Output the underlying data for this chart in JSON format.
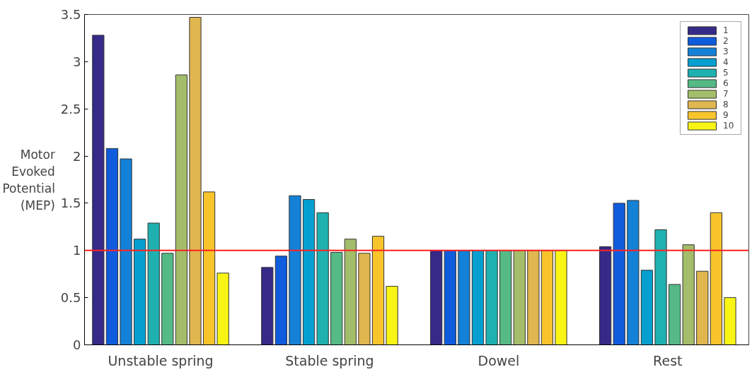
{
  "chart_data": {
    "type": "bar",
    "ylabel": "Motor Evoked Potential (MEP)",
    "categories": [
      "Unstable spring",
      "Stable spring",
      "Dowel",
      "Rest"
    ],
    "series": [
      {
        "name": "1",
        "color": "#352a87",
        "values": [
          3.28,
          0.82,
          1.0,
          1.04
        ]
      },
      {
        "name": "2",
        "color": "#0f5cdd",
        "values": [
          2.08,
          0.94,
          1.0,
          1.5
        ]
      },
      {
        "name": "3",
        "color": "#1481d6",
        "values": [
          1.97,
          1.58,
          1.0,
          1.53
        ]
      },
      {
        "name": "4",
        "color": "#069fd0",
        "values": [
          1.12,
          1.54,
          1.0,
          0.79
        ]
      },
      {
        "name": "5",
        "color": "#1eb1b0",
        "values": [
          1.29,
          1.4,
          1.0,
          1.22
        ]
      },
      {
        "name": "6",
        "color": "#55ba86",
        "values": [
          0.97,
          0.98,
          1.0,
          0.64
        ]
      },
      {
        "name": "7",
        "color": "#a3bd6a",
        "values": [
          2.86,
          1.12,
          1.0,
          1.06
        ]
      },
      {
        "name": "8",
        "color": "#dfb64f",
        "values": [
          3.47,
          0.97,
          1.0,
          0.78
        ]
      },
      {
        "name": "9",
        "color": "#f8c42c",
        "values": [
          1.62,
          1.15,
          1.0,
          1.4
        ]
      },
      {
        "name": "10",
        "color": "#f8f516",
        "values": [
          0.76,
          0.62,
          1.0,
          0.5
        ]
      }
    ],
    "ylim": [
      0,
      3.5
    ],
    "yticks": [
      0,
      0.5,
      1,
      1.5,
      2,
      2.5,
      3,
      3.5
    ],
    "ref_lines": [
      {
        "axis": "y",
        "value": 1,
        "color": "#ff2020"
      }
    ],
    "legend": "top right",
    "grid": false
  }
}
